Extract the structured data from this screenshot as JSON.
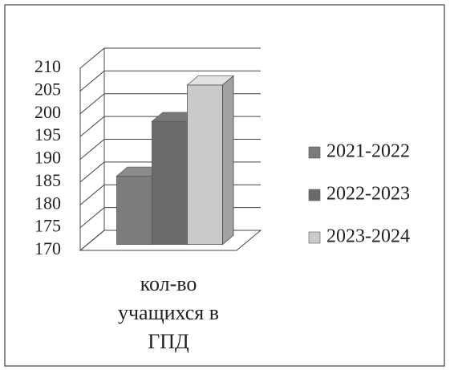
{
  "chart_data": {
    "type": "bar3d",
    "categories": [
      "кол-во учащихся в ГПД"
    ],
    "series": [
      {
        "name": "2021-2022",
        "color": "#7c7c7c",
        "values": [
          185
        ]
      },
      {
        "name": "2022-2023",
        "color": "#6b6b6b",
        "values": [
          197
        ]
      },
      {
        "name": "2023-2024",
        "color": "#cacaca",
        "values": [
          205
        ]
      }
    ],
    "ylim": [
      170,
      210
    ],
    "yticks": [
      170,
      175,
      180,
      185,
      190,
      195,
      200,
      205,
      210
    ],
    "grid": true,
    "legend": "right"
  }
}
